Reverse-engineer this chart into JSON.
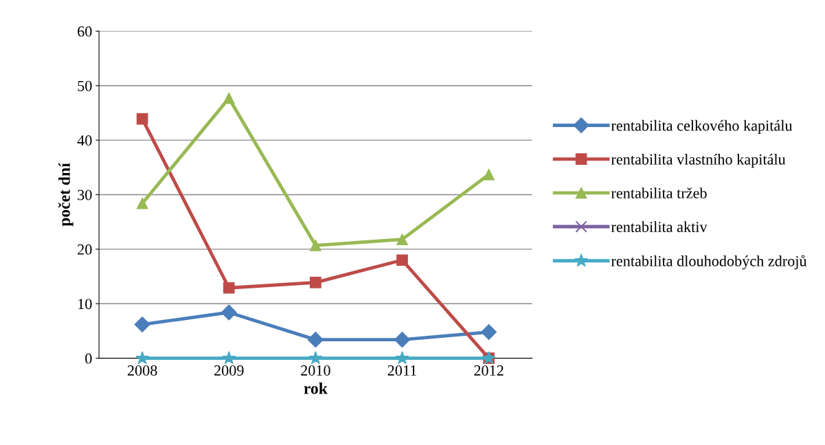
{
  "chart_data": {
    "type": "line",
    "xlabel": "rok",
    "ylabel": "počet dní",
    "categories": [
      "2008",
      "2009",
      "2010",
      "2011",
      "2012"
    ],
    "series": [
      {
        "name": "rentabilita celkového kapitálu",
        "color": "#4a7ebb",
        "marker": "diamond",
        "values": [
          6.2,
          8.4,
          3.4,
          3.4,
          4.8
        ]
      },
      {
        "name": "rentabilita vlastního kapitálu",
        "color": "#be4b48",
        "marker": "square",
        "values": [
          43.9,
          12.9,
          13.9,
          18.0,
          0
        ]
      },
      {
        "name": "rentabilita tržeb",
        "color": "#98b954",
        "marker": "triangle",
        "values": [
          28.4,
          47.7,
          20.7,
          21.8,
          33.7
        ]
      },
      {
        "name": "rentabilita aktiv",
        "color": "#7d60a0",
        "marker": "cross",
        "values": [
          null,
          null,
          null,
          null,
          null
        ]
      },
      {
        "name": "rentabilita dlouhodobých zdrojů",
        "color": "#46aac5",
        "marker": "star",
        "values": [
          0,
          0,
          0,
          0,
          0
        ]
      }
    ],
    "ylim": [
      0,
      60
    ],
    "yticks": [
      0,
      10,
      20,
      30,
      40,
      50,
      60
    ],
    "grid": "y",
    "legend": "right",
    "line_style": "solid"
  }
}
